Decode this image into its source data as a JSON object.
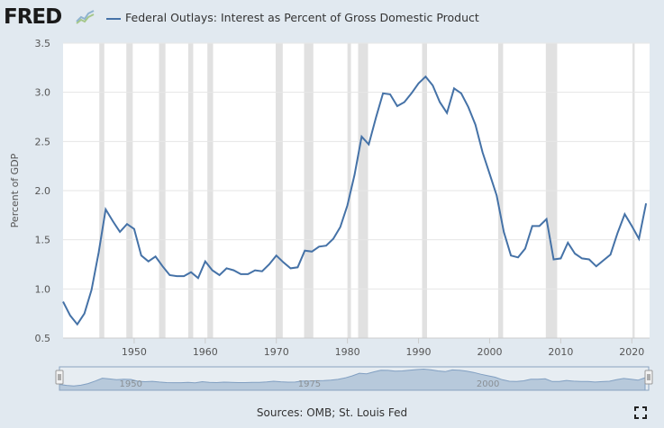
{
  "header": {
    "logo_text": "FRED",
    "logo_icon": "fred-graph-logo-icon"
  },
  "colors": {
    "series": "#4572a7",
    "recession": "#e1e1e1",
    "background": "#e1e9f0",
    "plot_background": "#ffffff",
    "navigator_fill": "#a8bdd6",
    "navigator_window": "#c9d6e3"
  },
  "footer": {
    "sources": "Sources: OMB; St. Louis Fed",
    "fullscreen_icon": "fullscreen-icon"
  },
  "navigator": {
    "labels": [
      "1950",
      "1975",
      "2000"
    ]
  },
  "chart_data": {
    "type": "line",
    "title": "",
    "xlabel": "",
    "ylabel": "Percent of GDP",
    "xlim": [
      1940,
      2022.5
    ],
    "ylim": [
      0.5,
      3.5
    ],
    "xticks": [
      1950,
      1960,
      1970,
      1980,
      1990,
      2000,
      2010,
      2020
    ],
    "yticks": [
      0.5,
      1.0,
      1.5,
      2.0,
      2.5,
      3.0,
      3.5
    ],
    "ytick_labels": [
      "0.5",
      "1.0",
      "1.5",
      "2.0",
      "2.5",
      "3.0",
      "3.5"
    ],
    "grid": true,
    "legend_position": "top",
    "recessions": [
      [
        1945.1,
        1945.8
      ],
      [
        1948.9,
        1949.8
      ],
      [
        1953.5,
        1954.4
      ],
      [
        1957.6,
        1958.3
      ],
      [
        1960.3,
        1961.1
      ],
      [
        1969.9,
        1970.9
      ],
      [
        1973.9,
        1975.2
      ],
      [
        1980.0,
        1980.5
      ],
      [
        1981.5,
        1982.9
      ],
      [
        1990.5,
        1991.2
      ],
      [
        2001.2,
        2001.9
      ],
      [
        2007.9,
        2009.5
      ],
      [
        2020.1,
        2020.4
      ]
    ],
    "series": [
      {
        "name": "Federal Outlays: Interest as Percent of Gross Domestic Product",
        "x": [
          1940,
          1941,
          1942,
          1943,
          1944,
          1945,
          1946,
          1947,
          1948,
          1949,
          1950,
          1951,
          1952,
          1953,
          1954,
          1955,
          1956,
          1957,
          1958,
          1959,
          1960,
          1961,
          1962,
          1963,
          1964,
          1965,
          1966,
          1967,
          1968,
          1969,
          1970,
          1971,
          1972,
          1973,
          1974,
          1975,
          1976,
          1977,
          1978,
          1979,
          1980,
          1981,
          1982,
          1983,
          1984,
          1985,
          1986,
          1987,
          1988,
          1989,
          1990,
          1991,
          1992,
          1993,
          1994,
          1995,
          1996,
          1997,
          1998,
          1999,
          2000,
          2001,
          2002,
          2003,
          2004,
          2005,
          2006,
          2007,
          2008,
          2009,
          2010,
          2011,
          2012,
          2013,
          2014,
          2015,
          2016,
          2017,
          2018,
          2019,
          2020,
          2021,
          2022
        ],
        "y": [
          0.87,
          0.73,
          0.64,
          0.75,
          0.99,
          1.37,
          1.81,
          1.69,
          1.58,
          1.66,
          1.61,
          1.34,
          1.28,
          1.33,
          1.23,
          1.14,
          1.13,
          1.13,
          1.17,
          1.11,
          1.28,
          1.19,
          1.14,
          1.21,
          1.19,
          1.15,
          1.15,
          1.19,
          1.18,
          1.25,
          1.34,
          1.27,
          1.21,
          1.22,
          1.39,
          1.38,
          1.43,
          1.44,
          1.51,
          1.63,
          1.85,
          2.16,
          2.55,
          2.47,
          2.74,
          2.99,
          2.98,
          2.86,
          2.9,
          2.99,
          3.09,
          3.16,
          3.07,
          2.9,
          2.79,
          3.04,
          2.99,
          2.85,
          2.67,
          2.39,
          2.17,
          1.95,
          1.58,
          1.34,
          1.32,
          1.41,
          1.64,
          1.64,
          1.71,
          1.3,
          1.31,
          1.47,
          1.36,
          1.31,
          1.3,
          1.23,
          1.29,
          1.35,
          1.57,
          1.76,
          1.64,
          1.51,
          1.87
        ]
      }
    ]
  }
}
